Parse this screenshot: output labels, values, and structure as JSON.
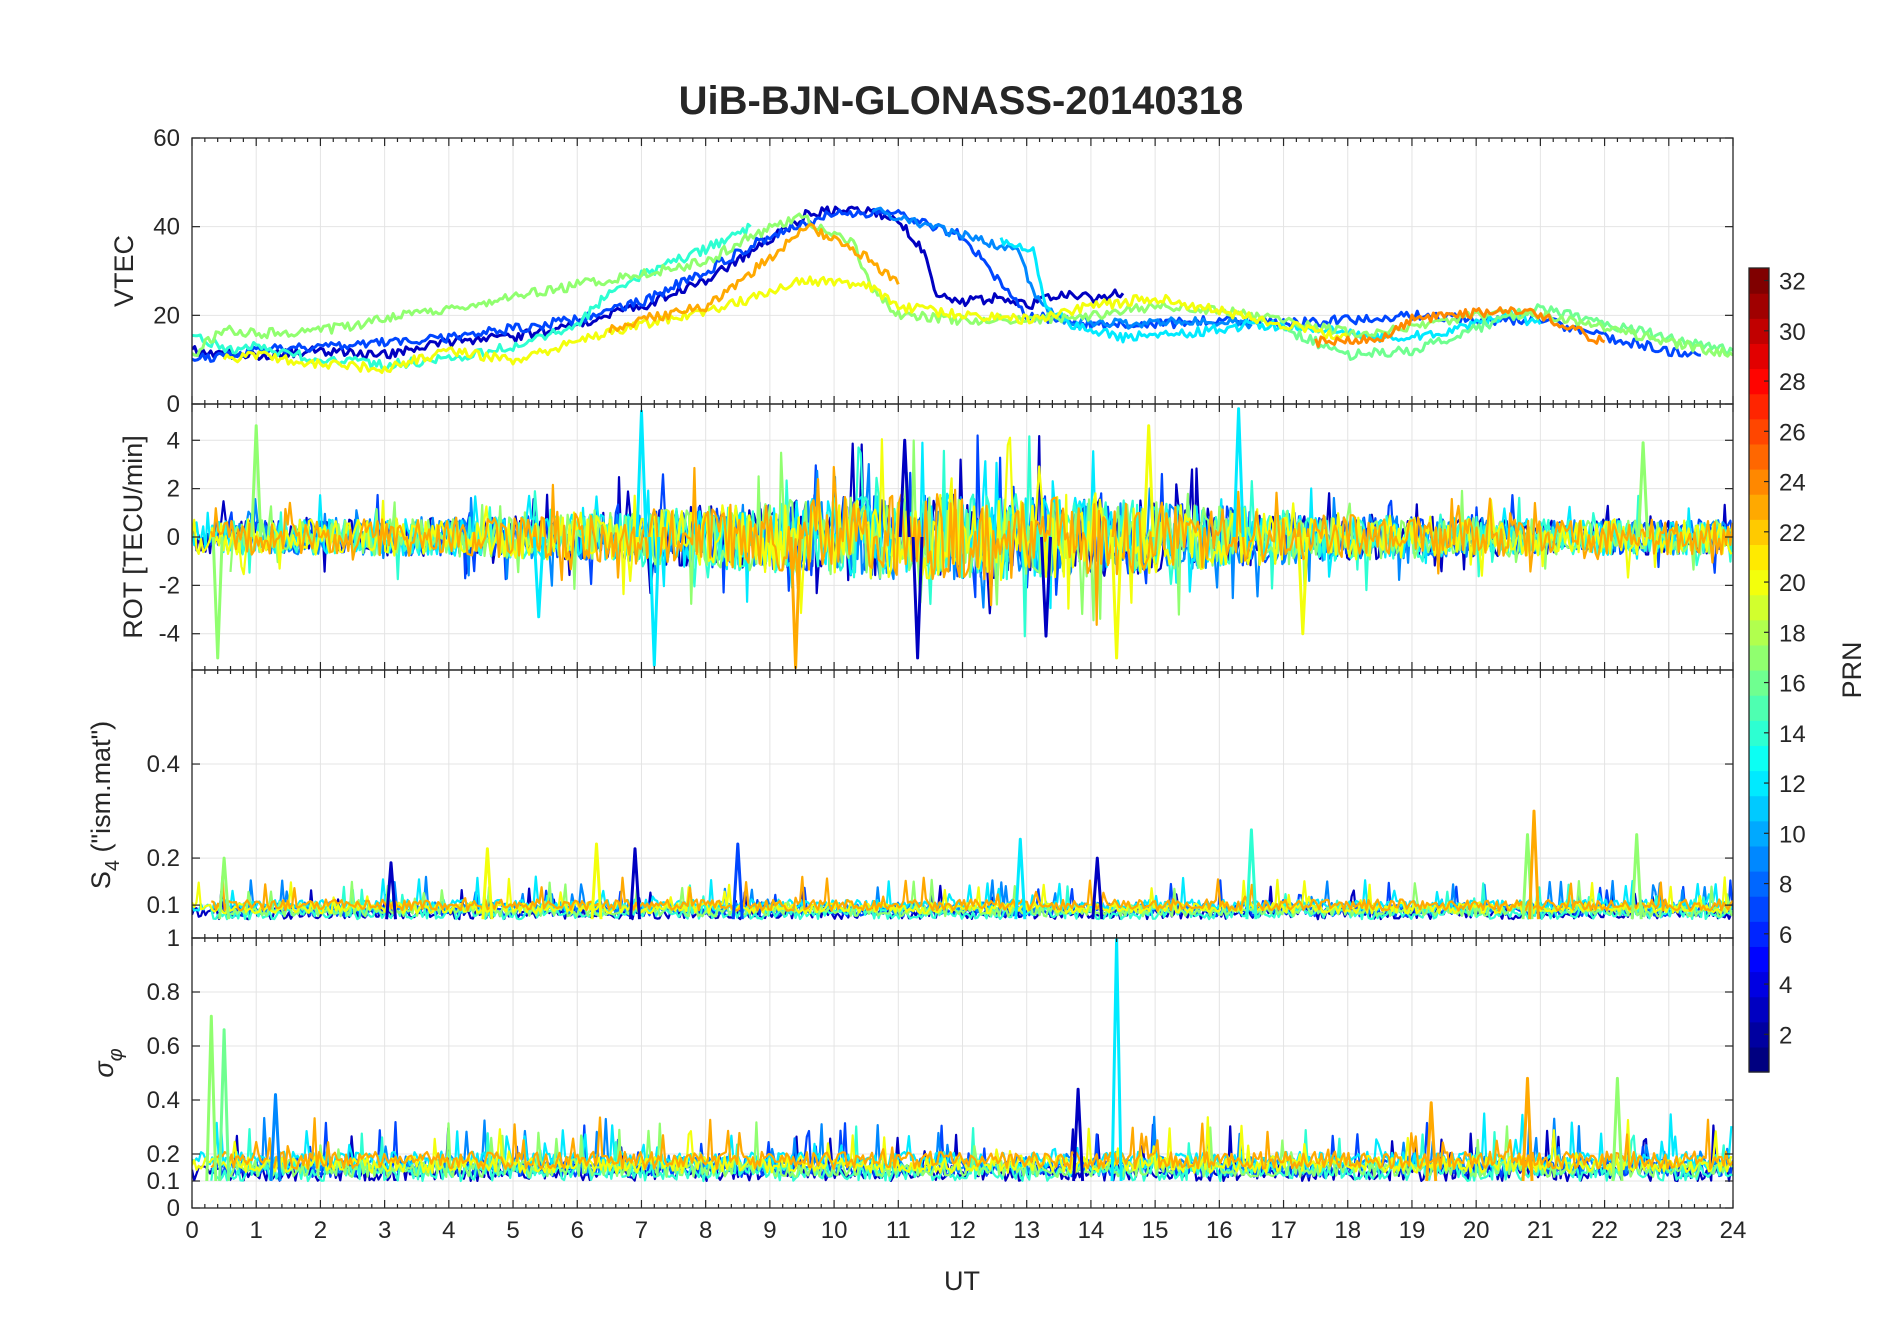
{
  "chart_data": {
    "type": "line",
    "title": "UiB-BJN-GLONASS-20140318",
    "xlabel": "UT",
    "xlim": [
      0,
      24
    ],
    "x_ticks": [
      "0",
      "1",
      "2",
      "3",
      "4",
      "5",
      "6",
      "7",
      "8",
      "9",
      "10",
      "11",
      "12",
      "13",
      "14",
      "15",
      "16",
      "17",
      "18",
      "19",
      "20",
      "21",
      "22",
      "23",
      "24"
    ],
    "grid": true,
    "panels": [
      {
        "id": "vtec",
        "ylabel": "VTEC",
        "ylim": [
          0,
          60
        ],
        "y_ticks": [
          "0",
          "20",
          "40",
          "60"
        ],
        "series": [
          {
            "name": "PRN 3",
            "prn": 3,
            "points": [
              [
                0.0,
                12
              ],
              [
                1.0,
                11
              ],
              [
                2.0,
                12
              ],
              [
                3.0,
                11
              ],
              [
                4.0,
                14
              ],
              [
                5.0,
                15
              ],
              [
                6.0,
                18
              ],
              [
                7.0,
                22
              ],
              [
                8.0,
                28
              ],
              [
                9.0,
                37
              ],
              [
                9.6,
                43
              ],
              [
                10.4,
                44
              ],
              [
                11.0,
                42
              ],
              [
                11.4,
                34
              ],
              [
                11.6,
                24
              ],
              [
                12.0,
                23
              ],
              [
                12.5,
                24
              ],
              [
                13.0,
                22
              ],
              [
                13.5,
                25
              ],
              [
                14.0,
                24
              ],
              [
                14.5,
                25
              ]
            ]
          },
          {
            "name": "PRN 7",
            "prn": 7,
            "points": [
              [
                0.0,
                10
              ],
              [
                1.0,
                12
              ],
              [
                2.0,
                13
              ],
              [
                3.0,
                14
              ],
              [
                4.0,
                15
              ],
              [
                5.0,
                17
              ],
              [
                6.0,
                19
              ],
              [
                7.0,
                23
              ],
              [
                8.0,
                30
              ],
              [
                9.0,
                38
              ],
              [
                10.0,
                43
              ],
              [
                11.0,
                43
              ],
              [
                12.0,
                38
              ],
              [
                13.0,
                20
              ],
              [
                14.0,
                18
              ],
              [
                15.0,
                18
              ],
              [
                16.0,
                19
              ],
              [
                17.0,
                18
              ],
              [
                18.0,
                19
              ],
              [
                19.0,
                20
              ],
              [
                20.0,
                19
              ],
              [
                21.0,
                19
              ],
              [
                22.0,
                15
              ],
              [
                23.0,
                12
              ],
              [
                23.5,
                11
              ]
            ]
          },
          {
            "name": "PRN 9",
            "prn": 9,
            "points": [
              [
                10.6,
                44
              ],
              [
                11.5,
                40
              ],
              [
                12.5,
                36
              ],
              [
                12.9,
                34
              ],
              [
                13.1,
                25
              ],
              [
                13.5,
                19
              ],
              [
                14.5,
                18
              ],
              [
                15.5,
                19
              ],
              [
                16.5,
                18
              ]
            ]
          },
          {
            "name": "PRN 12",
            "prn": 12,
            "points": [
              [
                12.6,
                37
              ],
              [
                13.1,
                35
              ],
              [
                13.3,
                22
              ],
              [
                13.7,
                18
              ],
              [
                14.5,
                15
              ],
              [
                15.5,
                16
              ],
              [
                16.5,
                18
              ],
              [
                17.5,
                17
              ],
              [
                18.5,
                15
              ],
              [
                19.5,
                16
              ],
              [
                20.5,
                20
              ],
              [
                21.0,
                18
              ]
            ]
          },
          {
            "name": "PRN 14",
            "prn": 14,
            "points": [
              [
                0.0,
                16
              ],
              [
                0.6,
                12
              ],
              [
                1.0,
                13
              ],
              [
                2.0,
                10
              ],
              [
                3.0,
                9
              ],
              [
                4.0,
                10
              ],
              [
                5.0,
                13
              ],
              [
                6.0,
                18
              ],
              [
                6.5,
                25
              ],
              [
                7.0,
                29
              ],
              [
                8.0,
                35
              ],
              [
                8.5,
                38
              ],
              [
                8.7,
                40
              ]
            ]
          },
          {
            "name": "PRN 16",
            "prn": 16,
            "points": [
              [
                17.0,
                17
              ],
              [
                18.0,
                11
              ],
              [
                19.0,
                12
              ],
              [
                20.0,
                17
              ],
              [
                21.0,
                22
              ],
              [
                22.0,
                18
              ],
              [
                23.0,
                15
              ],
              [
                24.0,
                12
              ]
            ]
          },
          {
            "name": "PRN 17",
            "prn": 17,
            "points": [
              [
                0.0,
                11
              ],
              [
                0.5,
                17
              ],
              [
                1.0,
                16
              ],
              [
                1.8,
                16
              ],
              [
                8.0,
                32
              ],
              [
                8.7,
                38
              ],
              [
                9.5,
                42
              ],
              [
                10.3,
                36
              ],
              [
                10.6,
                26
              ],
              [
                11.0,
                20
              ],
              [
                12.0,
                19
              ],
              [
                13.0,
                19
              ],
              [
                14.0,
                20
              ],
              [
                15.0,
                22
              ],
              [
                16.0,
                21
              ],
              [
                17.0,
                19
              ],
              [
                18.0,
                16
              ],
              [
                19.0,
                17
              ],
              [
                20.0,
                20
              ],
              [
                21.0,
                20
              ],
              [
                22.0,
                17
              ],
              [
                23.0,
                14
              ],
              [
                24.0,
                11
              ]
            ]
          },
          {
            "name": "PRN 20",
            "prn": 20,
            "points": [
              [
                0.5,
                10
              ],
              [
                1.0,
                11
              ],
              [
                2.0,
                9
              ],
              [
                3.0,
                8
              ],
              [
                4.0,
                12
              ],
              [
                5.0,
                10
              ],
              [
                6.0,
                14
              ],
              [
                7.0,
                18
              ],
              [
                8.0,
                21
              ],
              [
                9.0,
                25
              ],
              [
                9.5,
                28
              ],
              [
                10.5,
                27
              ],
              [
                11.0,
                22
              ],
              [
                12.0,
                20
              ],
              [
                13.0,
                19
              ],
              [
                14.0,
                22
              ],
              [
                15.0,
                24
              ],
              [
                16.0,
                21
              ],
              [
                17.0,
                18
              ],
              [
                18.0,
                15
              ]
            ]
          },
          {
            "name": "PRN 23",
            "prn": 23,
            "points": [
              [
                6.5,
                17
              ],
              [
                7.0,
                19
              ],
              [
                8.0,
                22
              ],
              [
                9.0,
                33
              ],
              [
                9.6,
                40
              ],
              [
                10.0,
                37
              ],
              [
                10.5,
                33
              ],
              [
                11.0,
                27
              ]
            ]
          },
          {
            "name": "PRN 24",
            "prn": 24,
            "points": [
              [
                17.5,
                14
              ],
              [
                18.5,
                15
              ],
              [
                19.0,
                19
              ],
              [
                19.5,
                20
              ],
              [
                20.5,
                21
              ],
              [
                20.8,
                21
              ],
              [
                21.3,
                18
              ],
              [
                22.0,
                14
              ]
            ]
          }
        ]
      },
      {
        "id": "rot",
        "ylabel": "ROT [TECU/min]",
        "ylim": [
          -5.5,
          5.5
        ],
        "y_ticks": [
          "-4",
          "-2",
          "0",
          "2",
          "4"
        ],
        "series_prns": [
          3,
          7,
          9,
          12,
          14,
          17,
          20,
          23
        ],
        "typical_amplitude": 1.2,
        "peak_spikes": [
          {
            "x": 0.4,
            "value": -5.0,
            "prn": 17
          },
          {
            "x": 1.0,
            "value": 4.6,
            "prn": 17
          },
          {
            "x": 5.4,
            "value": -3.3,
            "prn": 12
          },
          {
            "x": 7.0,
            "value": 5.2,
            "prn": 12
          },
          {
            "x": 7.2,
            "value": -5.3,
            "prn": 12
          },
          {
            "x": 9.4,
            "value": -5.4,
            "prn": 23
          },
          {
            "x": 11.1,
            "value": 4.0,
            "prn": 3
          },
          {
            "x": 11.3,
            "value": -5.0,
            "prn": 3
          },
          {
            "x": 13.3,
            "value": -4.1,
            "prn": 3
          },
          {
            "x": 14.4,
            "value": -5.0,
            "prn": 20
          },
          {
            "x": 14.9,
            "value": 4.6,
            "prn": 20
          },
          {
            "x": 16.3,
            "value": 5.3,
            "prn": 12
          },
          {
            "x": 17.3,
            "value": -4.0,
            "prn": 20
          },
          {
            "x": 22.6,
            "value": 3.9,
            "prn": 17
          }
        ]
      },
      {
        "id": "s4",
        "ylabel": "S4 (\"ism.mat\")",
        "ylabel_main": "S",
        "ylabel_sub": "4",
        "ylabel_tail": " (\"ism.mat\")",
        "ylim": [
          0.03,
          0.6
        ],
        "y_ticks": [
          "0.1",
          "0.2",
          "0.4"
        ],
        "baseline": 0.07,
        "peak_spikes": [
          {
            "x": 0.5,
            "value": 0.2,
            "prn": 17
          },
          {
            "x": 3.1,
            "value": 0.19,
            "prn": 3
          },
          {
            "x": 4.6,
            "value": 0.22,
            "prn": 20
          },
          {
            "x": 6.3,
            "value": 0.23,
            "prn": 20
          },
          {
            "x": 6.9,
            "value": 0.22,
            "prn": 3
          },
          {
            "x": 8.5,
            "value": 0.23,
            "prn": 7
          },
          {
            "x": 12.9,
            "value": 0.24,
            "prn": 12
          },
          {
            "x": 14.1,
            "value": 0.2,
            "prn": 3
          },
          {
            "x": 16.5,
            "value": 0.26,
            "prn": 14
          },
          {
            "x": 20.8,
            "value": 0.25,
            "prn": 17
          },
          {
            "x": 20.9,
            "value": 0.3,
            "prn": 23
          },
          {
            "x": 22.5,
            "value": 0.25,
            "prn": 17
          }
        ]
      },
      {
        "id": "sigma_phi",
        "ylabel": "σφ",
        "ylabel_main": "σ",
        "ylabel_sub": "φ",
        "ylim": [
          0,
          1
        ],
        "y_ticks": [
          "0",
          "0.1",
          "0.2",
          "0.4",
          "0.6",
          "0.8",
          "1"
        ],
        "baseline": 0.1,
        "peak_spikes": [
          {
            "x": 0.3,
            "value": 0.71,
            "prn": 17
          },
          {
            "x": 0.5,
            "value": 0.66,
            "prn": 16
          },
          {
            "x": 1.3,
            "value": 0.42,
            "prn": 9
          },
          {
            "x": 13.8,
            "value": 0.44,
            "prn": 3
          },
          {
            "x": 14.4,
            "value": 1.0,
            "prn": 12
          },
          {
            "x": 19.3,
            "value": 0.39,
            "prn": 23
          },
          {
            "x": 20.8,
            "value": 0.48,
            "prn": 23
          },
          {
            "x": 22.2,
            "value": 0.48,
            "prn": 17
          }
        ]
      }
    ],
    "colorbar": {
      "label": "PRN",
      "range": [
        1,
        32
      ],
      "ticks": [
        "2",
        "4",
        "6",
        "8",
        "10",
        "12",
        "14",
        "16",
        "18",
        "20",
        "22",
        "24",
        "26",
        "28",
        "30",
        "32"
      ],
      "colormap": "jet"
    }
  }
}
